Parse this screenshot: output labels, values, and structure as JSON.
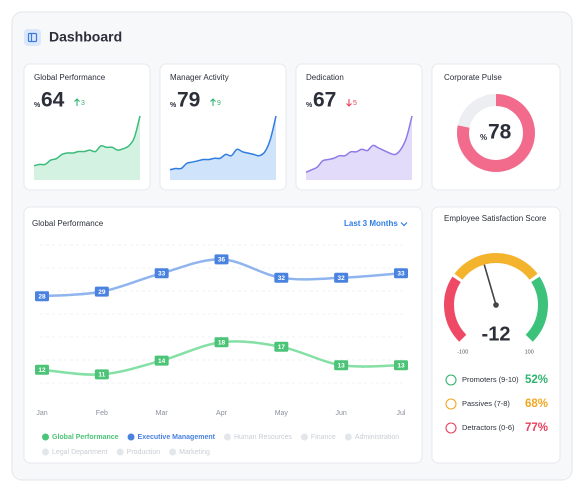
{
  "header": {
    "title": "Dashboard"
  },
  "kpis": [
    {
      "title": "Global Performance",
      "unit": "%",
      "value": 64,
      "delta": 3,
      "direction": "up",
      "color": "#3dbb7c",
      "fill": "#d3f2e2",
      "sparkline": [
        10,
        11,
        11,
        14,
        15,
        18,
        19,
        19,
        20,
        20,
        21,
        20,
        24,
        23,
        23,
        21,
        22,
        24,
        30,
        45
      ]
    },
    {
      "title": "Manager Activity",
      "unit": "%",
      "value": 79,
      "delta": 9,
      "direction": "up",
      "color": "#2f7de1",
      "fill": "#cfe3fb",
      "sparkline": [
        8,
        9,
        9,
        13,
        14,
        15,
        16,
        16,
        17,
        17,
        20,
        19,
        24,
        22,
        21,
        20,
        19,
        22,
        32,
        50
      ]
    },
    {
      "title": "Dedication",
      "unit": "%",
      "value": 67,
      "delta": 5,
      "direction": "down",
      "color": "#8f7ae8",
      "fill": "#e2dbfa",
      "sparkline": [
        6,
        8,
        10,
        15,
        16,
        17,
        19,
        19,
        22,
        22,
        24,
        23,
        27,
        25,
        23,
        21,
        20,
        24,
        33,
        50
      ]
    }
  ],
  "pulse": {
    "title": "Corporate Pulse",
    "unit": "%",
    "value": 78,
    "color": "#f26b8c"
  },
  "chart_data": {
    "type": "line",
    "title": "Global Performance",
    "period": "Last 3 Months",
    "categories": [
      "Jan",
      "Feb",
      "Mar",
      "Apr",
      "May",
      "Jun",
      "Jul"
    ],
    "series": [
      {
        "name": "Global Performance",
        "color": "#4cc477",
        "values": [
          12,
          11,
          14,
          18,
          17,
          13,
          13
        ]
      },
      {
        "name": "Executive Management",
        "color": "#4a82e0",
        "values": [
          28,
          29,
          33,
          36,
          32,
          32,
          33
        ]
      }
    ],
    "inactive_series": [
      "Human Resources",
      "Finance",
      "Administration",
      "Legal Department",
      "Production",
      "Marketing"
    ]
  },
  "satisfaction": {
    "title": "Employee Satisfaction Score",
    "value": -12,
    "ticks": [
      -100,
      100
    ],
    "groups": [
      {
        "label": "Promoters (9-10)",
        "value": "52%",
        "color": "#2fb36f"
      },
      {
        "label": "Passives (7-8)",
        "value": "68%",
        "color": "#f0a820"
      },
      {
        "label": "Detractors (0-6)",
        "value": "77%",
        "color": "#e8405e"
      }
    ]
  }
}
